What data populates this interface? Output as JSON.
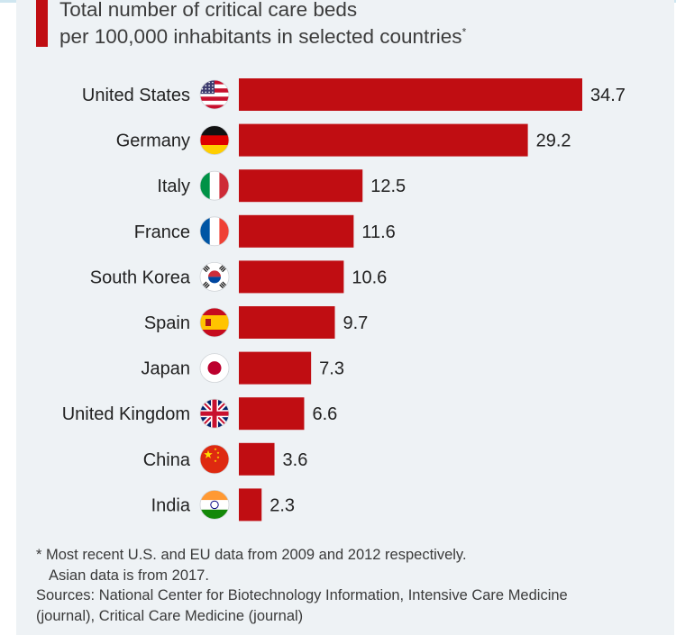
{
  "title": {
    "line1": "Total number of critical care beds",
    "line2": "per 100,000 inhabitants in selected countries",
    "marker": "*"
  },
  "chart_data": {
    "type": "bar",
    "orientation": "horizontal",
    "title": "Total number of critical care beds per 100,000 inhabitants in selected countries",
    "xlabel": "",
    "ylabel": "",
    "xlim": [
      0,
      34.7
    ],
    "categories": [
      "United States",
      "Germany",
      "Italy",
      "France",
      "South Korea",
      "Spain",
      "Japan",
      "United Kingdom",
      "China",
      "India"
    ],
    "values": [
      34.7,
      29.2,
      12.5,
      11.6,
      10.6,
      9.7,
      7.3,
      6.6,
      3.6,
      2.3
    ],
    "value_labels": [
      "34.7",
      "29.2",
      "12.5",
      "11.6",
      "10.6",
      "9.7",
      "7.3",
      "6.6",
      "3.6",
      "2.3"
    ],
    "flags": [
      "us-flag-icon",
      "germany-flag-icon",
      "italy-flag-icon",
      "france-flag-icon",
      "south-korea-flag-icon",
      "spain-flag-icon",
      "japan-flag-icon",
      "uk-flag-icon",
      "china-flag-icon",
      "india-flag-icon"
    ],
    "bar_color": "#c00d12"
  },
  "footnote": {
    "note_line1": "* Most recent U.S. and EU data from 2009 and 2012 respectively.",
    "note_line2": "Asian data is from 2017.",
    "sources_line1": "Sources: National Center for Biotechnology Information, Intensive Care Medicine",
    "sources_line2": "(journal), Critical Care Medicine (journal)"
  }
}
